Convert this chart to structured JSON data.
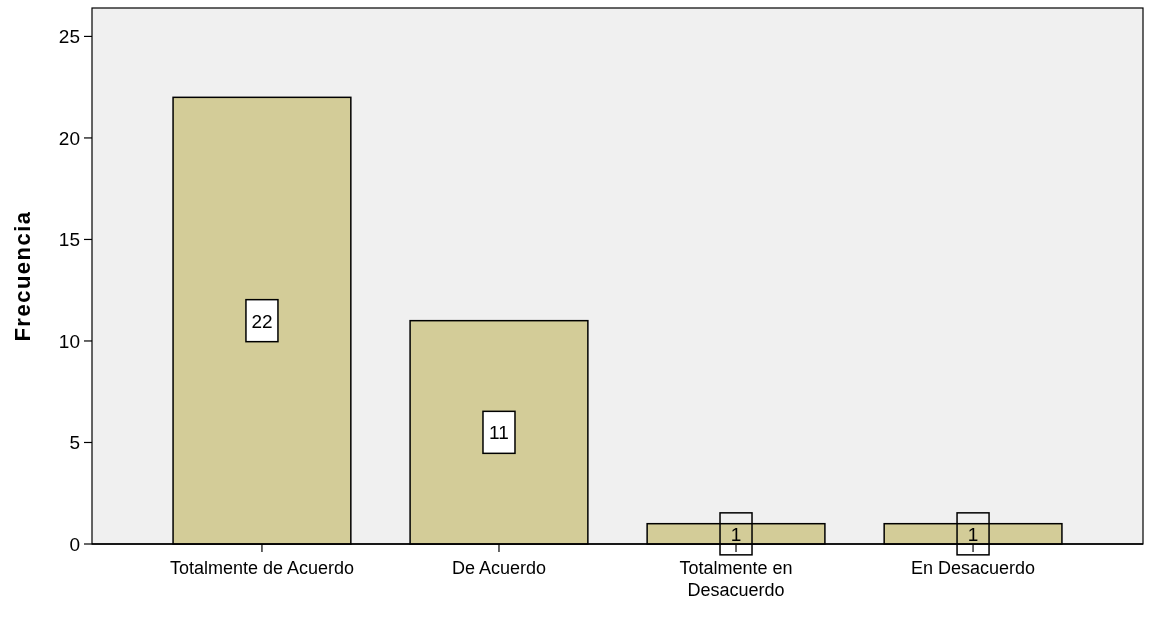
{
  "chart_data": {
    "type": "bar",
    "ylabel": "Frecuencia",
    "categories": [
      "Totalmente de Acuerdo",
      "De Acuerdo",
      "Totalmente en Desacuerdo",
      "En Desacuerdo"
    ],
    "values": [
      22,
      11,
      1,
      1
    ],
    "color": "#d3cc98",
    "ylim": [
      0,
      26.4
    ],
    "yticks": [
      0,
      5,
      10,
      15,
      20,
      25
    ],
    "grid": false,
    "data_labels": true
  }
}
